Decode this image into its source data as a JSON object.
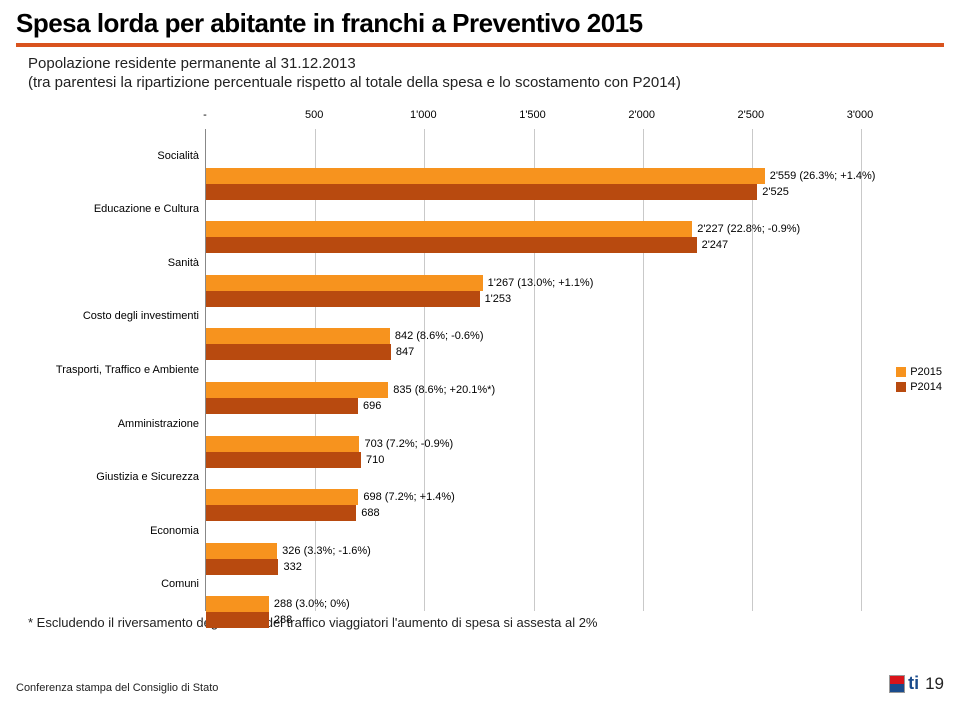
{
  "title": "Spesa lorda per abitante in franchi a Preventivo 2015",
  "subtitle1": "Popolazione residente permanente al 31.12.2013",
  "subtitle2": "(tra parentesi la ripartizione percentuale rispetto al totale della spesa e lo scostamento con P2014)",
  "chart": {
    "type": "bar-horizontal-grouped",
    "xmin": 0,
    "xmax": 3000,
    "xtick_step": 500,
    "xtick_labels": [
      "-",
      "500",
      "1'000",
      "1'500",
      "2'000",
      "2'500",
      "3'000"
    ],
    "series": [
      {
        "name": "P2015",
        "color": "#f7931e"
      },
      {
        "name": "P2014",
        "color": "#b84a0f"
      }
    ],
    "grid_color": "#c9c9c9",
    "background": "#ffffff",
    "label_fontsize": 11,
    "categories": [
      {
        "label": "Socialità",
        "v2015": 2559,
        "v2014": 2525,
        "ann2015": "2'559 (26.3%; +1.4%)",
        "ann2014": "2'525"
      },
      {
        "label": "Educazione e Cultura",
        "v2015": 2227,
        "v2014": 2247,
        "ann2015": "2'227 (22.8%; -0.9%)",
        "ann2014": "2'247"
      },
      {
        "label": "Sanità",
        "v2015": 1267,
        "v2014": 1253,
        "ann2015": "1'267 (13.0%; +1.1%)",
        "ann2014": "1'253"
      },
      {
        "label": "Costo degli investimenti",
        "v2015": 842,
        "v2014": 847,
        "ann2015": "842 (8.6%; -0.6%)",
        "ann2014": "847"
      },
      {
        "label": "Trasporti, Traffico e Ambiente",
        "v2015": 835,
        "v2014": 696,
        "ann2015": "835 (8.6%; +20.1%*)",
        "ann2014": "696"
      },
      {
        "label": "Amministrazione",
        "v2015": 703,
        "v2014": 710,
        "ann2015": "703 (7.2%; -0.9%)",
        "ann2014": "710"
      },
      {
        "label": "Giustizia e Sicurezza",
        "v2015": 698,
        "v2014": 688,
        "ann2015": "698 (7.2%; +1.4%)",
        "ann2014": "688"
      },
      {
        "label": "Economia",
        "v2015": 326,
        "v2014": 332,
        "ann2015": "326 (3.3%; -1.6%)",
        "ann2014": "332"
      },
      {
        "label": "Comuni",
        "v2015": 288,
        "v2014": 288,
        "ann2015": "288 (3.0%; 0%)",
        "ann2014": "288"
      }
    ]
  },
  "footnote": "* Escludendo il riversamento degli introiti del traffico viaggiatori l'aumento di spesa si assesta al 2%",
  "footer_left": "Conferenza stampa del Consiglio di Stato",
  "page_number": "19",
  "logo_text": "ti",
  "logo_colors": {
    "top": "#d9141a",
    "bottom": "#1a4b8c"
  }
}
